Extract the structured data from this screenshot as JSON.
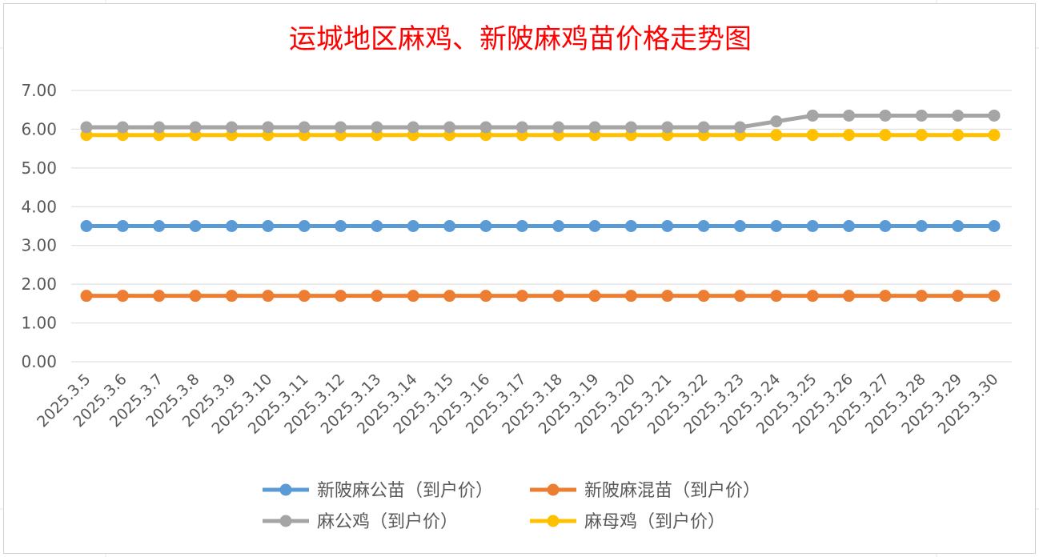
{
  "chart_data": {
    "type": "line",
    "title": "运城地区麻鸡、新陂麻鸡苗价格走势图",
    "xlabel": "",
    "ylabel": "",
    "ylim": [
      0,
      7
    ],
    "yticks": [
      "0.00",
      "1.00",
      "2.00",
      "3.00",
      "4.00",
      "5.00",
      "6.00",
      "7.00"
    ],
    "grid": true,
    "legend_position": "bottom",
    "categories": [
      "2025.3.5",
      "2025.3.6",
      "2025.3.7",
      "2025.3.8",
      "2025.3.9",
      "2025.3.10",
      "2025.3.11",
      "2025.3.12",
      "2025.3.13",
      "2025.3.14",
      "2025.3.15",
      "2025.3.16",
      "2025.3.17",
      "2025.3.18",
      "2025.3.19",
      "2025.3.20",
      "2025.3.21",
      "2025.3.22",
      "2025.3.23",
      "2025.3.24",
      "2025.3.25",
      "2025.3.26",
      "2025.3.27",
      "2025.3.28",
      "2025.3.29",
      "2025.3.30"
    ],
    "series": [
      {
        "name": "新陂麻公苗（到户价）",
        "color": "#5b9bd5",
        "values": [
          3.5,
          3.5,
          3.5,
          3.5,
          3.5,
          3.5,
          3.5,
          3.5,
          3.5,
          3.5,
          3.5,
          3.5,
          3.5,
          3.5,
          3.5,
          3.5,
          3.5,
          3.5,
          3.5,
          3.5,
          3.5,
          3.5,
          3.5,
          3.5,
          3.5,
          3.5
        ]
      },
      {
        "name": "新陂麻混苗（到户价）",
        "color": "#ed7d31",
        "values": [
          1.7,
          1.7,
          1.7,
          1.7,
          1.7,
          1.7,
          1.7,
          1.7,
          1.7,
          1.7,
          1.7,
          1.7,
          1.7,
          1.7,
          1.7,
          1.7,
          1.7,
          1.7,
          1.7,
          1.7,
          1.7,
          1.7,
          1.7,
          1.7,
          1.7,
          1.7
        ]
      },
      {
        "name": "麻公鸡（到户价）",
        "color": "#a5a5a5",
        "values": [
          6.05,
          6.05,
          6.05,
          6.05,
          6.05,
          6.05,
          6.05,
          6.05,
          6.05,
          6.05,
          6.05,
          6.05,
          6.05,
          6.05,
          6.05,
          6.05,
          6.05,
          6.05,
          6.05,
          6.2,
          6.35,
          6.35,
          6.35,
          6.35,
          6.35,
          6.35
        ]
      },
      {
        "name": "麻母鸡（到户价）",
        "color": "#ffc000",
        "values": [
          5.85,
          5.85,
          5.85,
          5.85,
          5.85,
          5.85,
          5.85,
          5.85,
          5.85,
          5.85,
          5.85,
          5.85,
          5.85,
          5.85,
          5.85,
          5.85,
          5.85,
          5.85,
          5.85,
          5.85,
          5.85,
          5.85,
          5.85,
          5.85,
          5.85,
          5.85
        ]
      }
    ]
  }
}
